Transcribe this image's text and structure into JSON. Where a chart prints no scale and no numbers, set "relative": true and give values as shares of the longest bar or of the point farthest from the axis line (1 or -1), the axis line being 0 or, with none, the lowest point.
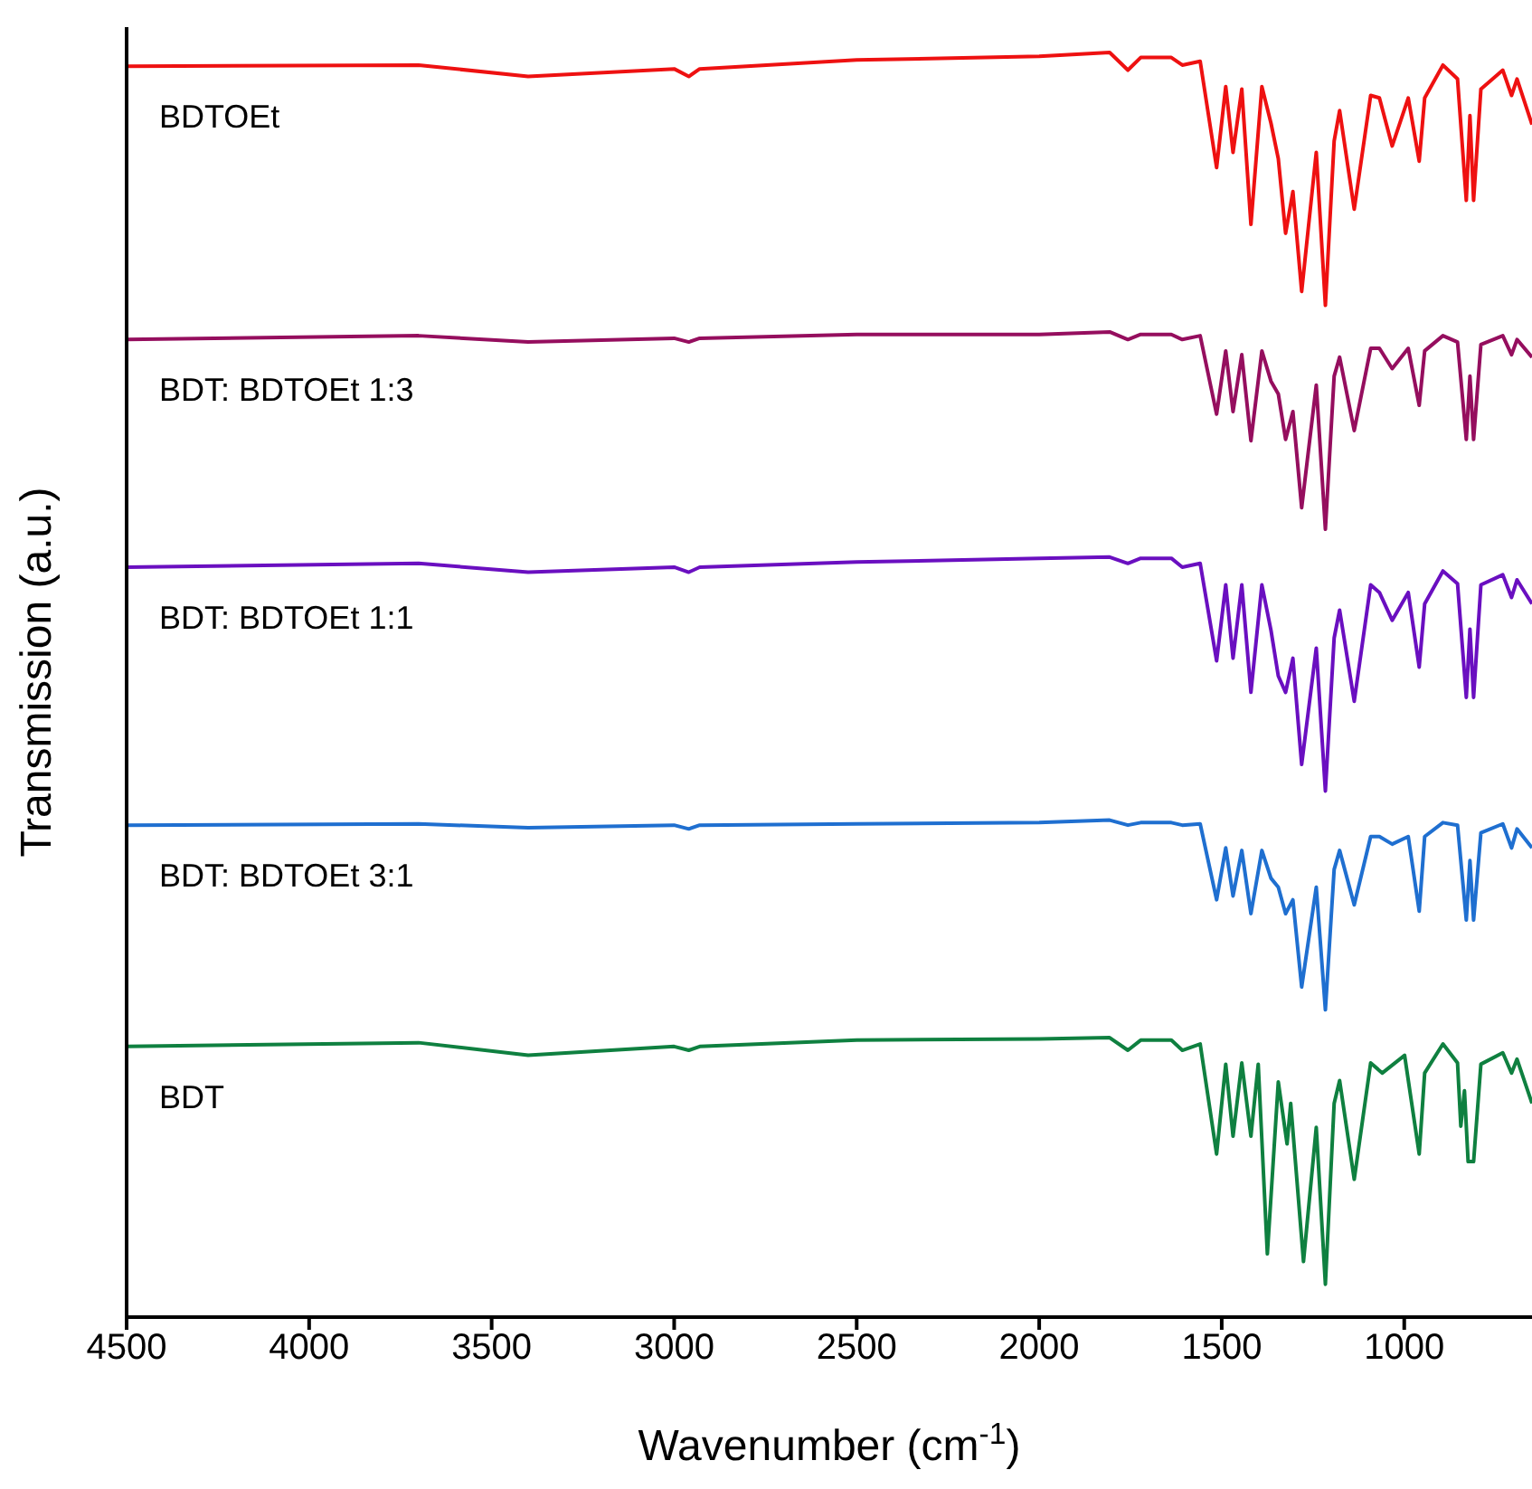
{
  "chart_data": {
    "type": "line",
    "xlabel": "Wavenumber (cm$^{-1}$)",
    "ylabel": "Transmission (a.u.)",
    "relative": true,
    "tick_labels": "x",
    "xlim": [
      4500,
      650
    ],
    "xticks": [
      4500,
      4000,
      3500,
      3000,
      2500,
      2000,
      1500,
      1000
    ],
    "grid": false,
    "legend": false,
    "marker": "none",
    "line_style": "solid",
    "series": [
      {
        "name": "BDTOEt",
        "color": "#ee1111",
        "x": [
          4500,
          3700,
          3400,
          3000,
          2960,
          2930,
          2500,
          2000,
          1807,
          1757,
          1722,
          1638,
          1608,
          1559,
          1514,
          1489,
          1469,
          1445,
          1420,
          1390,
          1365,
          1345,
          1325,
          1305,
          1281,
          1241,
          1216,
          1192,
          1177,
          1137,
          1092,
          1068,
          1033,
          989,
          959,
          944,
          894,
          854,
          830,
          820,
          810,
          790,
          730,
          706,
          691,
          650
        ],
        "values": [
          0.989,
          0.99,
          0.981,
          0.987,
          0.981,
          0.987,
          0.994,
          0.997,
          1.0,
          0.986,
          0.996,
          0.996,
          0.99,
          0.993,
          0.909,
          0.973,
          0.921,
          0.971,
          0.864,
          0.973,
          0.944,
          0.916,
          0.857,
          0.89,
          0.811,
          0.921,
          0.8,
          0.93,
          0.954,
          0.876,
          0.966,
          0.964,
          0.926,
          0.964,
          0.914,
          0.964,
          0.99,
          0.979,
          0.883,
          0.95,
          0.883,
          0.971,
          0.986,
          0.966,
          0.979,
          0.943
        ]
      },
      {
        "name": "BDT: BDTOEt 1:3",
        "color": "#950e5e",
        "x": [
          4500,
          3700,
          3400,
          3000,
          2960,
          2930,
          2500,
          2000,
          1807,
          1757,
          1722,
          1638,
          1608,
          1559,
          1514,
          1489,
          1469,
          1445,
          1420,
          1390,
          1365,
          1345,
          1325,
          1305,
          1281,
          1241,
          1216,
          1192,
          1177,
          1137,
          1092,
          1068,
          1033,
          989,
          959,
          944,
          894,
          854,
          830,
          820,
          810,
          790,
          730,
          706,
          691,
          650
        ],
        "values": [
          0.773,
          0.776,
          0.771,
          0.774,
          0.771,
          0.774,
          0.777,
          0.777,
          0.779,
          0.773,
          0.777,
          0.777,
          0.773,
          0.776,
          0.714,
          0.764,
          0.716,
          0.761,
          0.693,
          0.764,
          0.74,
          0.73,
          0.694,
          0.716,
          0.64,
          0.737,
          0.623,
          0.744,
          0.759,
          0.701,
          0.766,
          0.766,
          0.75,
          0.766,
          0.721,
          0.764,
          0.776,
          0.771,
          0.694,
          0.744,
          0.694,
          0.769,
          0.776,
          0.761,
          0.773,
          0.759
        ]
      },
      {
        "name": "BDT: BDTOEt 1:1",
        "color": "#6a0fc0",
        "x": [
          4500,
          3700,
          3400,
          3000,
          2960,
          2930,
          2500,
          2000,
          1807,
          1757,
          1722,
          1638,
          1608,
          1559,
          1514,
          1489,
          1469,
          1445,
          1420,
          1390,
          1365,
          1345,
          1325,
          1305,
          1281,
          1241,
          1216,
          1192,
          1177,
          1137,
          1092,
          1068,
          1033,
          989,
          959,
          944,
          894,
          854,
          830,
          820,
          810,
          790,
          730,
          706,
          691,
          650
        ],
        "values": [
          0.593,
          0.596,
          0.589,
          0.593,
          0.589,
          0.593,
          0.597,
          0.6,
          0.601,
          0.596,
          0.6,
          0.6,
          0.593,
          0.596,
          0.519,
          0.579,
          0.521,
          0.579,
          0.494,
          0.579,
          0.543,
          0.507,
          0.494,
          0.521,
          0.437,
          0.529,
          0.416,
          0.537,
          0.559,
          0.487,
          0.579,
          0.573,
          0.551,
          0.573,
          0.514,
          0.564,
          0.59,
          0.58,
          0.49,
          0.544,
          0.49,
          0.579,
          0.587,
          0.569,
          0.583,
          0.564
        ]
      },
      {
        "name": "BDT: BDTOEt 3:1",
        "color": "#1f6fd0",
        "x": [
          4500,
          3700,
          3400,
          3000,
          2960,
          2930,
          2500,
          2000,
          1807,
          1757,
          1722,
          1638,
          1608,
          1559,
          1514,
          1489,
          1469,
          1445,
          1420,
          1390,
          1365,
          1345,
          1325,
          1305,
          1281,
          1241,
          1216,
          1192,
          1177,
          1137,
          1092,
          1068,
          1033,
          989,
          959,
          944,
          894,
          854,
          830,
          820,
          810,
          790,
          730,
          706,
          691,
          650
        ],
        "values": [
          0.389,
          0.39,
          0.387,
          0.389,
          0.386,
          0.389,
          0.39,
          0.391,
          0.393,
          0.389,
          0.391,
          0.391,
          0.389,
          0.39,
          0.33,
          0.371,
          0.333,
          0.369,
          0.319,
          0.369,
          0.347,
          0.34,
          0.319,
          0.33,
          0.261,
          0.34,
          0.243,
          0.354,
          0.369,
          0.326,
          0.38,
          0.38,
          0.374,
          0.38,
          0.321,
          0.38,
          0.391,
          0.389,
          0.314,
          0.361,
          0.314,
          0.383,
          0.39,
          0.371,
          0.386,
          0.371
        ]
      },
      {
        "name": "BDT",
        "color": "#0f8040",
        "x": [
          4500,
          3700,
          3400,
          3000,
          2960,
          2930,
          2500,
          2000,
          1807,
          1757,
          1722,
          1638,
          1608,
          1559,
          1514,
          1489,
          1469,
          1445,
          1420,
          1400,
          1375,
          1345,
          1321,
          1311,
          1276,
          1241,
          1216,
          1192,
          1177,
          1137,
          1092,
          1060,
          999,
          959,
          944,
          894,
          854,
          845,
          835,
          825,
          810,
          790,
          730,
          706,
          691,
          650
        ],
        "values": [
          0.214,
          0.217,
          0.207,
          0.214,
          0.211,
          0.214,
          0.219,
          0.22,
          0.221,
          0.211,
          0.219,
          0.219,
          0.211,
          0.216,
          0.129,
          0.2,
          0.143,
          0.201,
          0.143,
          0.2,
          0.05,
          0.186,
          0.137,
          0.169,
          0.044,
          0.15,
          0.026,
          0.169,
          0.187,
          0.109,
          0.201,
          0.193,
          0.207,
          0.129,
          0.193,
          0.216,
          0.201,
          0.151,
          0.179,
          0.123,
          0.123,
          0.2,
          0.209,
          0.193,
          0.204,
          0.169
        ]
      }
    ]
  }
}
